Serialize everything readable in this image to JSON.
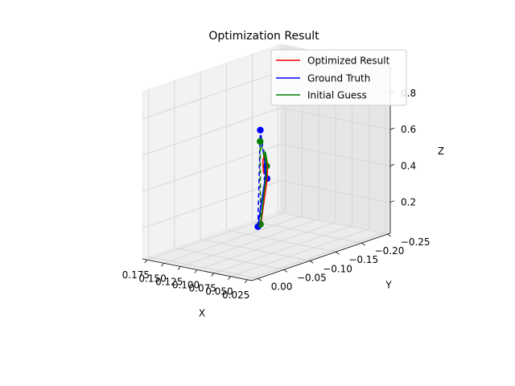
{
  "chart_data": {
    "type": "line3d",
    "title": "Optimization Result",
    "xlabel": "X",
    "ylabel": "Y",
    "zlabel": "Z",
    "xlim": [
      0.018,
      0.182
    ],
    "ylim": [
      -0.255,
      0.012
    ],
    "zlim": [
      0.03,
      0.95
    ],
    "xticks": [
      0.025,
      0.05,
      0.075,
      0.1,
      0.125,
      0.15,
      0.175
    ],
    "xtick_labels": [
      "0.025",
      "0.050",
      "0.075",
      "0.100",
      "0.125",
      "0.150",
      "0.175"
    ],
    "yticks": [
      -0.25,
      -0.2,
      -0.15,
      -0.1,
      -0.05,
      0.0
    ],
    "ytick_labels": [
      "−0.25",
      "−0.20",
      "−0.15",
      "−0.10",
      "−0.05",
      "0.00"
    ],
    "zticks": [
      0.2,
      0.4,
      0.6,
      0.8
    ],
    "ztick_labels": [
      "0.2",
      "0.4",
      "0.6",
      "0.8"
    ],
    "grid": true,
    "legend_position": "top-right",
    "series": [
      {
        "name": "Optimized Result",
        "color": "#ff0000",
        "style": "solid",
        "points": [
          [
            0.028,
            -0.018,
            0.3
          ],
          [
            0.034,
            -0.033,
            0.43
          ],
          [
            0.043,
            -0.05,
            0.52
          ],
          [
            0.057,
            -0.068,
            0.57
          ],
          [
            0.073,
            -0.086,
            0.575
          ],
          [
            0.089,
            -0.103,
            0.55
          ],
          [
            0.104,
            -0.12,
            0.5
          ],
          [
            0.117,
            -0.137,
            0.44
          ],
          [
            0.126,
            -0.15,
            0.38
          ]
        ]
      },
      {
        "name": "Ground Truth",
        "color": "#0000ff",
        "style": "solid",
        "points": [
          [
            0.026,
            -0.01,
            0.3
          ],
          [
            0.03,
            -0.022,
            0.42
          ],
          [
            0.038,
            -0.038,
            0.5
          ],
          [
            0.051,
            -0.058,
            0.54
          ],
          [
            0.067,
            -0.078,
            0.555
          ],
          [
            0.084,
            -0.098,
            0.53
          ],
          [
            0.1,
            -0.118,
            0.47
          ],
          [
            0.115,
            -0.138,
            0.4
          ],
          [
            0.125,
            -0.155,
            0.35
          ]
        ]
      },
      {
        "name": "Initial Guess",
        "color": "#008000",
        "style": "solid",
        "points": [
          [
            0.03,
            -0.02,
            0.3
          ],
          [
            0.036,
            -0.034,
            0.44
          ],
          [
            0.046,
            -0.052,
            0.53
          ],
          [
            0.061,
            -0.072,
            0.58
          ],
          [
            0.08,
            -0.094,
            0.585
          ],
          [
            0.098,
            -0.116,
            0.555
          ],
          [
            0.116,
            -0.139,
            0.5
          ],
          [
            0.131,
            -0.16,
            0.44
          ],
          [
            0.145,
            -0.18,
            0.38
          ]
        ]
      }
    ],
    "control_polygons": [
      {
        "color": "#0000ff",
        "style": "dashed",
        "points": [
          [
            0.026,
            -0.01,
            0.3
          ],
          [
            0.024,
            -0.012,
            0.83
          ],
          [
            0.125,
            -0.155,
            0.35
          ]
        ]
      },
      {
        "color": "#008000",
        "style": "dashed",
        "points": [
          [
            0.03,
            -0.02,
            0.3
          ],
          [
            0.018,
            -0.004,
            0.78
          ],
          [
            0.145,
            -0.18,
            0.38
          ]
        ]
      }
    ]
  }
}
